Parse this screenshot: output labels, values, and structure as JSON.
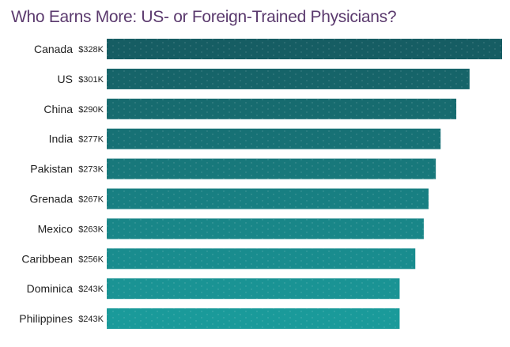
{
  "chart_data": {
    "type": "bar",
    "orientation": "horizontal",
    "title": "Who Earns More: US- or Foreign-Trained Physicians?",
    "xlabel": "",
    "ylabel": "",
    "categories": [
      "Canada",
      "US",
      "China",
      "India",
      "Pakistan",
      "Grenada",
      "Mexico",
      "Caribbean",
      "Dominica",
      "Philippines"
    ],
    "values": [
      328,
      301,
      290,
      277,
      273,
      267,
      263,
      256,
      243,
      243
    ],
    "value_labels": [
      "$328K",
      "$301K",
      "$290K",
      "$277K",
      "$273K",
      "$267K",
      "$263K",
      "$256K",
      "$243K",
      "$243K"
    ],
    "grid": false,
    "legend": "none",
    "colors": {
      "title": "#5b3a6e",
      "bar_top": "#165d63",
      "bar_bottom": "#1a9a9a"
    }
  }
}
